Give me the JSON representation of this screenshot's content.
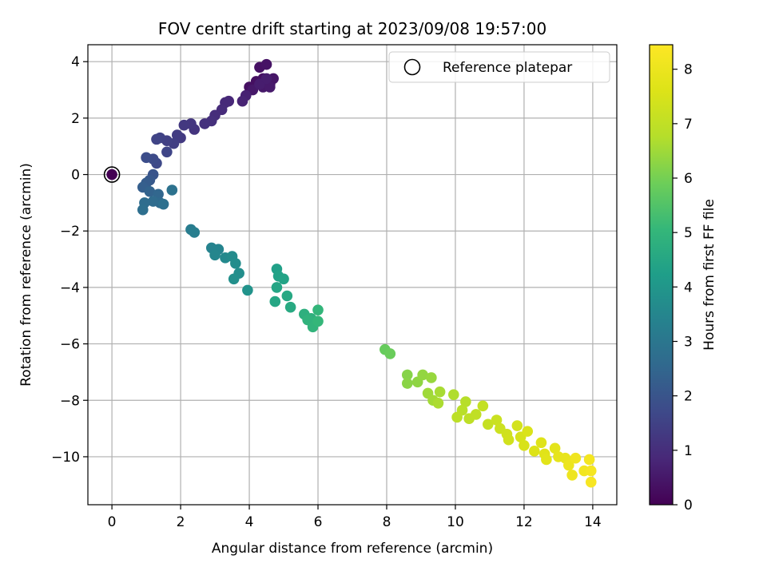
{
  "chart_data": {
    "type": "scatter",
    "title": "FOV centre drift starting at 2023/09/08 19:57:00",
    "xlabel": "Angular distance from reference (arcmin)",
    "ylabel": "Rotation from reference (arcmin)",
    "colorbar_label": "Hours from first FF file",
    "xlim": [
      -0.7,
      14.7
    ],
    "ylim": [
      -11.7,
      4.6
    ],
    "clim": [
      0,
      8.45
    ],
    "colormap": "viridis",
    "grid": true,
    "legend_position": "top-right",
    "legend": [
      {
        "label": "Reference platepar",
        "marker": "open-circle"
      }
    ],
    "reference_point": {
      "x": 0,
      "y": 0
    },
    "xticks": [
      0,
      2,
      4,
      6,
      8,
      10,
      12,
      14
    ],
    "yticks": [
      4,
      2,
      0,
      -2,
      -4,
      -6,
      -8,
      -10
    ],
    "cticks": [
      0,
      1,
      2,
      3,
      4,
      5,
      6,
      7,
      8
    ],
    "points": [
      {
        "x": 0,
        "y": 0,
        "c": 0
      },
      {
        "x": 4.0,
        "y": 3.1,
        "c": 0.3
      },
      {
        "x": 4.2,
        "y": 3.3,
        "c": 0.3
      },
      {
        "x": 4.3,
        "y": 3.8,
        "c": 0.35
      },
      {
        "x": 4.4,
        "y": 3.4,
        "c": 0.35
      },
      {
        "x": 4.5,
        "y": 3.9,
        "c": 0.4
      },
      {
        "x": 4.6,
        "y": 3.2,
        "c": 0.4
      },
      {
        "x": 4.7,
        "y": 3.4,
        "c": 0.45
      },
      {
        "x": 4.1,
        "y": 3.0,
        "c": 0.5
      },
      {
        "x": 4.4,
        "y": 3.1,
        "c": 0.5
      },
      {
        "x": 4.6,
        "y": 3.1,
        "c": 0.55
      },
      {
        "x": 4.3,
        "y": 3.2,
        "c": 0.6
      },
      {
        "x": 4.5,
        "y": 3.4,
        "c": 0.6
      },
      {
        "x": 3.9,
        "y": 2.8,
        "c": 0.7
      },
      {
        "x": 3.8,
        "y": 2.6,
        "c": 0.75
      },
      {
        "x": 3.4,
        "y": 2.6,
        "c": 0.85
      },
      {
        "x": 3.3,
        "y": 2.55,
        "c": 0.9
      },
      {
        "x": 3.2,
        "y": 2.3,
        "c": 0.95
      },
      {
        "x": 3.0,
        "y": 2.1,
        "c": 1.0
      },
      {
        "x": 2.9,
        "y": 1.9,
        "c": 1.05
      },
      {
        "x": 2.7,
        "y": 1.8,
        "c": 1.1
      },
      {
        "x": 2.4,
        "y": 1.6,
        "c": 1.15
      },
      {
        "x": 2.3,
        "y": 1.8,
        "c": 1.2
      },
      {
        "x": 2.1,
        "y": 1.75,
        "c": 1.25
      },
      {
        "x": 2.0,
        "y": 1.3,
        "c": 1.3
      },
      {
        "x": 1.9,
        "y": 1.4,
        "c": 1.35
      },
      {
        "x": 1.8,
        "y": 1.1,
        "c": 1.4
      },
      {
        "x": 1.6,
        "y": 1.2,
        "c": 1.45
      },
      {
        "x": 1.4,
        "y": 1.3,
        "c": 1.5
      },
      {
        "x": 1.3,
        "y": 1.25,
        "c": 1.55
      },
      {
        "x": 1.6,
        "y": 0.8,
        "c": 1.6
      },
      {
        "x": 1.3,
        "y": 0.4,
        "c": 1.7
      },
      {
        "x": 1.2,
        "y": 0.55,
        "c": 1.75
      },
      {
        "x": 1.0,
        "y": 0.6,
        "c": 1.8
      },
      {
        "x": 1.2,
        "y": 0.0,
        "c": 2.0
      },
      {
        "x": 1.1,
        "y": -0.2,
        "c": 2.1
      },
      {
        "x": 1.0,
        "y": -0.3,
        "c": 2.2
      },
      {
        "x": 0.9,
        "y": -0.45,
        "c": 2.3
      },
      {
        "x": 1.1,
        "y": -0.6,
        "c": 2.4
      },
      {
        "x": 1.35,
        "y": -0.7,
        "c": 2.5
      },
      {
        "x": 1.4,
        "y": -1.0,
        "c": 2.6
      },
      {
        "x": 1.2,
        "y": -0.95,
        "c": 2.65
      },
      {
        "x": 0.95,
        "y": -1.0,
        "c": 2.7
      },
      {
        "x": 0.9,
        "y": -1.25,
        "c": 2.75
      },
      {
        "x": 1.5,
        "y": -1.05,
        "c": 2.8
      },
      {
        "x": 1.75,
        "y": -0.55,
        "c": 2.85
      },
      {
        "x": 2.3,
        "y": -1.95,
        "c": 3.2
      },
      {
        "x": 2.4,
        "y": -2.05,
        "c": 3.25
      },
      {
        "x": 2.9,
        "y": -2.6,
        "c": 3.4
      },
      {
        "x": 3.1,
        "y": -2.65,
        "c": 3.45
      },
      {
        "x": 3.0,
        "y": -2.85,
        "c": 3.5
      },
      {
        "x": 3.3,
        "y": -2.95,
        "c": 3.6
      },
      {
        "x": 3.5,
        "y": -2.9,
        "c": 3.65
      },
      {
        "x": 3.6,
        "y": -3.15,
        "c": 3.7
      },
      {
        "x": 3.7,
        "y": -3.5,
        "c": 3.75
      },
      {
        "x": 3.55,
        "y": -3.7,
        "c": 3.8
      },
      {
        "x": 3.95,
        "y": -4.1,
        "c": 3.9
      },
      {
        "x": 4.8,
        "y": -3.35,
        "c": 4.3
      },
      {
        "x": 4.85,
        "y": -3.6,
        "c": 4.35
      },
      {
        "x": 5.0,
        "y": -3.7,
        "c": 4.4
      },
      {
        "x": 4.8,
        "y": -4.0,
        "c": 4.45
      },
      {
        "x": 4.75,
        "y": -4.5,
        "c": 4.5
      },
      {
        "x": 5.1,
        "y": -4.3,
        "c": 4.55
      },
      {
        "x": 5.2,
        "y": -4.7,
        "c": 4.6
      },
      {
        "x": 5.6,
        "y": -4.95,
        "c": 4.8
      },
      {
        "x": 5.8,
        "y": -5.1,
        "c": 4.85
      },
      {
        "x": 5.7,
        "y": -5.15,
        "c": 4.9
      },
      {
        "x": 5.85,
        "y": -5.4,
        "c": 4.95
      },
      {
        "x": 6.0,
        "y": -4.8,
        "c": 5.0
      },
      {
        "x": 6.0,
        "y": -5.2,
        "c": 5.05
      },
      {
        "x": 7.95,
        "y": -6.2,
        "c": 5.8
      },
      {
        "x": 8.1,
        "y": -6.35,
        "c": 5.85
      },
      {
        "x": 8.6,
        "y": -7.1,
        "c": 6.2
      },
      {
        "x": 8.6,
        "y": -7.4,
        "c": 6.25
      },
      {
        "x": 8.9,
        "y": -7.35,
        "c": 6.3
      },
      {
        "x": 9.05,
        "y": -7.1,
        "c": 6.35
      },
      {
        "x": 9.3,
        "y": -7.2,
        "c": 6.4
      },
      {
        "x": 9.2,
        "y": -7.75,
        "c": 6.5
      },
      {
        "x": 9.35,
        "y": -8.0,
        "c": 6.55
      },
      {
        "x": 9.55,
        "y": -7.7,
        "c": 6.6
      },
      {
        "x": 9.5,
        "y": -8.1,
        "c": 6.65
      },
      {
        "x": 9.95,
        "y": -7.8,
        "c": 6.7
      },
      {
        "x": 10.3,
        "y": -8.05,
        "c": 6.8
      },
      {
        "x": 10.2,
        "y": -8.35,
        "c": 6.85
      },
      {
        "x": 10.05,
        "y": -8.6,
        "c": 6.9
      },
      {
        "x": 10.4,
        "y": -8.65,
        "c": 6.95
      },
      {
        "x": 10.6,
        "y": -8.5,
        "c": 7.0
      },
      {
        "x": 10.8,
        "y": -8.2,
        "c": 7.05
      },
      {
        "x": 10.95,
        "y": -8.85,
        "c": 7.1
      },
      {
        "x": 11.2,
        "y": -8.7,
        "c": 7.2
      },
      {
        "x": 11.3,
        "y": -9.0,
        "c": 7.25
      },
      {
        "x": 11.5,
        "y": -9.2,
        "c": 7.3
      },
      {
        "x": 11.55,
        "y": -9.4,
        "c": 7.35
      },
      {
        "x": 11.8,
        "y": -8.9,
        "c": 7.4
      },
      {
        "x": 11.9,
        "y": -9.3,
        "c": 7.45
      },
      {
        "x": 12.0,
        "y": -9.6,
        "c": 7.5
      },
      {
        "x": 12.1,
        "y": -9.1,
        "c": 7.55
      },
      {
        "x": 12.3,
        "y": -9.8,
        "c": 7.6
      },
      {
        "x": 12.5,
        "y": -9.5,
        "c": 7.65
      },
      {
        "x": 12.6,
        "y": -9.9,
        "c": 7.7
      },
      {
        "x": 12.65,
        "y": -10.1,
        "c": 7.75
      },
      {
        "x": 12.9,
        "y": -9.7,
        "c": 7.8
      },
      {
        "x": 13.0,
        "y": -10.0,
        "c": 7.85
      },
      {
        "x": 13.2,
        "y": -10.05,
        "c": 7.9
      },
      {
        "x": 13.3,
        "y": -10.3,
        "c": 8.0
      },
      {
        "x": 13.4,
        "y": -10.65,
        "c": 8.05
      },
      {
        "x": 13.5,
        "y": -10.05,
        "c": 8.1
      },
      {
        "x": 13.75,
        "y": -10.5,
        "c": 8.15
      },
      {
        "x": 13.9,
        "y": -10.1,
        "c": 8.2
      },
      {
        "x": 13.95,
        "y": -10.5,
        "c": 8.25
      },
      {
        "x": 13.95,
        "y": -10.9,
        "c": 8.3
      }
    ]
  }
}
